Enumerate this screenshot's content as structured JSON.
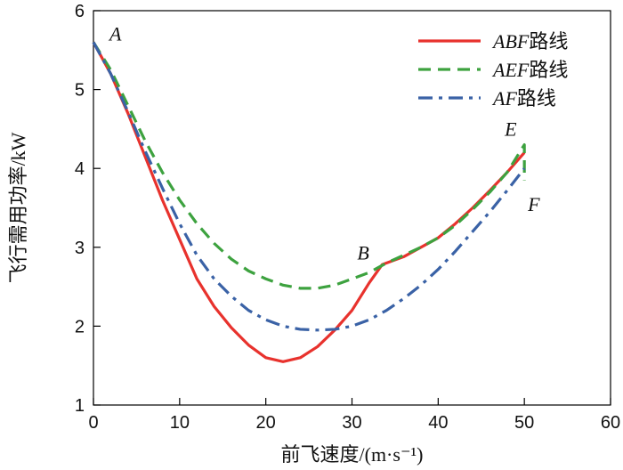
{
  "chart_data": {
    "type": "line",
    "title": "",
    "xlabel": "前飞速度/(m·s⁻¹)",
    "ylabel": "飞行需用功率/kW",
    "xlim": [
      0,
      60
    ],
    "ylim": [
      1,
      6
    ],
    "xticks": [
      0,
      10,
      20,
      30,
      40,
      50,
      60
    ],
    "yticks": [
      1,
      2,
      3,
      4,
      5,
      6
    ],
    "grid": false,
    "legend_position": "top-right",
    "series": [
      {
        "name": "ABF路线",
        "name_italic": "ABF",
        "name_suffix": "路线",
        "color": "#e8322d",
        "dash": "solid",
        "x": [
          0,
          2,
          4,
          6,
          8,
          10,
          12,
          14,
          16,
          18,
          20,
          22,
          24,
          26,
          28,
          30,
          32,
          33.5,
          36,
          38,
          40,
          42,
          44,
          46,
          48,
          50
        ],
        "y": [
          5.6,
          5.2,
          4.7,
          4.15,
          3.6,
          3.1,
          2.6,
          2.25,
          1.98,
          1.76,
          1.6,
          1.55,
          1.6,
          1.74,
          1.95,
          2.2,
          2.55,
          2.78,
          2.88,
          3.0,
          3.12,
          3.3,
          3.5,
          3.72,
          3.95,
          4.2
        ]
      },
      {
        "name": "AEF路线",
        "name_italic": "AEF",
        "name_suffix": "路线",
        "color": "#3da23f",
        "dash": "dashed",
        "x": [
          0,
          2,
          4,
          6,
          8,
          10,
          12,
          14,
          16,
          18,
          20,
          22,
          24,
          26,
          28,
          30,
          32,
          34,
          36,
          38,
          40,
          42,
          44,
          46,
          48,
          50,
          50,
          50
        ],
        "y": [
          5.6,
          5.25,
          4.8,
          4.35,
          3.95,
          3.6,
          3.3,
          3.05,
          2.85,
          2.7,
          2.6,
          2.52,
          2.48,
          2.48,
          2.52,
          2.6,
          2.68,
          2.8,
          2.9,
          3.0,
          3.12,
          3.28,
          3.48,
          3.7,
          3.95,
          4.3,
          4.05,
          3.85
        ]
      },
      {
        "name": "AF路线",
        "name_italic": "AF",
        "name_suffix": "路线",
        "color": "#3a62a6",
        "dash": "dashdot",
        "x": [
          0,
          2,
          4,
          6,
          8,
          10,
          12,
          14,
          16,
          18,
          20,
          22,
          24,
          26,
          28,
          30,
          32,
          34,
          36,
          38,
          40,
          42,
          44,
          46,
          48,
          50
        ],
        "y": [
          5.6,
          5.2,
          4.72,
          4.22,
          3.75,
          3.3,
          2.9,
          2.6,
          2.38,
          2.2,
          2.08,
          2.0,
          1.96,
          1.95,
          1.96,
          2.0,
          2.08,
          2.2,
          2.35,
          2.52,
          2.72,
          2.95,
          3.2,
          3.45,
          3.72,
          4.0
        ]
      }
    ],
    "annotations": [
      {
        "label": "A",
        "x": 0.0,
        "y": 5.6
      },
      {
        "label": "B",
        "x": 33.5,
        "y": 2.78
      },
      {
        "label": "E",
        "x": 50.0,
        "y": 4.3
      },
      {
        "label": "F",
        "x": 50.0,
        "y": 3.8
      }
    ]
  }
}
